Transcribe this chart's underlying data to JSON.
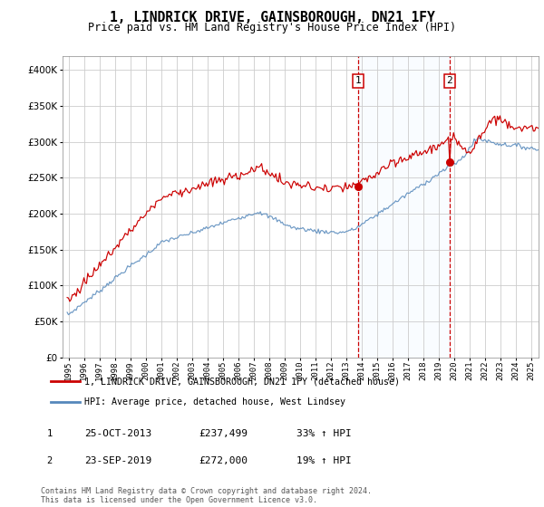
{
  "title": "1, LINDRICK DRIVE, GAINSBOROUGH, DN21 1FY",
  "subtitle": "Price paid vs. HM Land Registry's House Price Index (HPI)",
  "legend_line1": "1, LINDRICK DRIVE, GAINSBOROUGH, DN21 1FY (detached house)",
  "legend_line2": "HPI: Average price, detached house, West Lindsey",
  "table_rows": [
    {
      "num": "1",
      "date": "25-OCT-2013",
      "price": "£237,499",
      "change": "33% ↑ HPI"
    },
    {
      "num": "2",
      "date": "23-SEP-2019",
      "price": "£272,000",
      "change": "19% ↑ HPI"
    }
  ],
  "footnote": "Contains HM Land Registry data © Crown copyright and database right 2024.\nThis data is licensed under the Open Government Licence v3.0.",
  "red_color": "#cc0000",
  "blue_color": "#5588bb",
  "shade_color": "#ddeeff",
  "marker1_x_year": 2013.82,
  "marker2_x_year": 2019.73,
  "sale1_price": 237499,
  "sale2_price": 272000,
  "ylim": [
    0,
    420000
  ],
  "xlim_start": 1995,
  "xlim_end": 2025.5
}
